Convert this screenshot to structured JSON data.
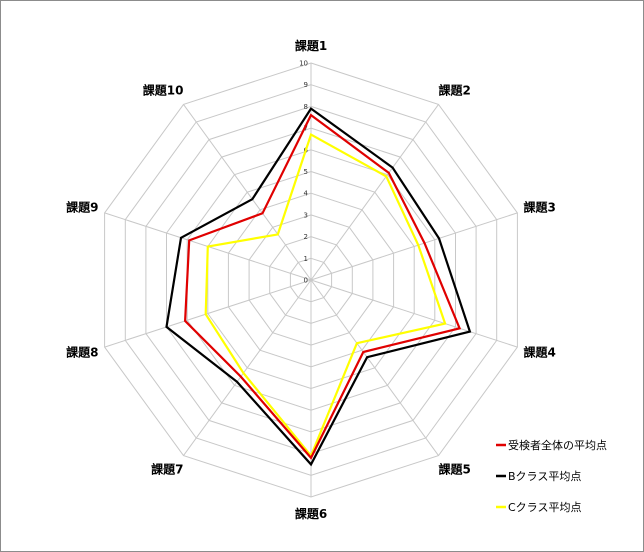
{
  "chart_data": {
    "type": "radar",
    "categories": [
      "課題1",
      "課題2",
      "課題3",
      "課題4",
      "課題5",
      "課題6",
      "課題7",
      "課題8",
      "課題9",
      "課題10"
    ],
    "ticks": [
      "0",
      "1",
      "2",
      "3",
      "4",
      "5",
      "6",
      "7",
      "8",
      "9",
      "10"
    ],
    "range": [
      0,
      10
    ],
    "grid": true,
    "legend_position": "bottom-right",
    "series": [
      {
        "name": "受検者全体の平均点",
        "color": "#e00000",
        "values": [
          7.6,
          6.1,
          5.5,
          7.2,
          4.1,
          8.2,
          5.5,
          6.1,
          5.9,
          3.8
        ]
      },
      {
        "name": "Bクラス平均点",
        "color": "#000000",
        "values": [
          7.9,
          6.4,
          6.2,
          7.7,
          4.4,
          8.5,
          5.8,
          7.0,
          6.3,
          4.6
        ]
      },
      {
        "name": "Cクラス平均点",
        "color": "#ffff00",
        "values": [
          6.7,
          5.9,
          5.2,
          6.5,
          3.6,
          8.1,
          5.3,
          5.1,
          5.0,
          2.6
        ]
      }
    ]
  }
}
